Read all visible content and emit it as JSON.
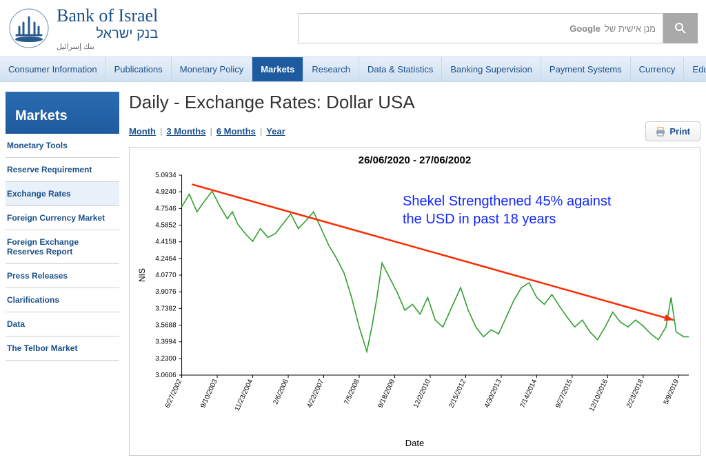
{
  "header": {
    "bank_en": "Bank of Israel",
    "bank_he": "בנק ישראל",
    "bank_ar": "بنك إسرائيل",
    "search_label": "מנן אישית של",
    "search_brand": "Google"
  },
  "nav": {
    "items": [
      "Consumer Information",
      "Publications",
      "Monetary Policy",
      "Markets",
      "Research",
      "Data & Statistics",
      "Banking Supervision",
      "Payment Systems",
      "Currency",
      "Education"
    ],
    "active_index": 3
  },
  "sidebar": {
    "title": "Markets",
    "items": [
      "Monetary Tools",
      "Reserve Requirement",
      "Exchange Rates",
      "Foreign Currency Market",
      "Foreign Exchange Reserves Report",
      "Press Releases",
      "Clarifications",
      "Data",
      "The Telbor Market"
    ],
    "active_index": 2
  },
  "page": {
    "title": "Daily - Exchange Rates: Dollar USA",
    "print_label": "Print"
  },
  "periods": {
    "items": [
      "Month",
      "3 Months",
      "6 Months",
      "Year"
    ]
  },
  "chart": {
    "type": "line",
    "title": "26/06/2020 - 27/06/2002",
    "ylabel": "NIS",
    "xlabel": "Date",
    "ylim": [
      3.0606,
      5.0934
    ],
    "yticks": [
      5.0934,
      4.924,
      4.7546,
      4.5852,
      4.4158,
      4.2464,
      4.077,
      3.9076,
      3.7382,
      3.5688,
      3.3994,
      3.23,
      3.0606
    ],
    "xticks": [
      "6/27/2002",
      "9/10/2003",
      "11/23/2004",
      "2/6/2006",
      "4/22/2007",
      "7/5/2008",
      "9/18/2009",
      "12/2/2010",
      "2/15/2012",
      "4/30/2013",
      "7/14/2014",
      "9/27/2015",
      "12/10/2016",
      "2/23/2018",
      "5/9/2019"
    ],
    "line_color": "#2e9e2e",
    "background_color": "#ffffff",
    "axis_color": "#000000",
    "tick_fontsize": 10,
    "annotation_text_1": "Shekel Strengthened 45% against",
    "annotation_text_2": "the USD in past 18 years",
    "annotation_color": "#1227ff",
    "arrow_color": "#ff2a00",
    "series": [
      [
        0,
        4.77
      ],
      [
        0.015,
        4.9
      ],
      [
        0.03,
        4.72
      ],
      [
        0.045,
        4.83
      ],
      [
        0.06,
        4.93
      ],
      [
        0.075,
        4.78
      ],
      [
        0.09,
        4.65
      ],
      [
        0.1,
        4.72
      ],
      [
        0.11,
        4.6
      ],
      [
        0.125,
        4.5
      ],
      [
        0.14,
        4.42
      ],
      [
        0.155,
        4.55
      ],
      [
        0.17,
        4.46
      ],
      [
        0.185,
        4.5
      ],
      [
        0.2,
        4.6
      ],
      [
        0.215,
        4.7
      ],
      [
        0.23,
        4.55
      ],
      [
        0.245,
        4.63
      ],
      [
        0.26,
        4.72
      ],
      [
        0.275,
        4.55
      ],
      [
        0.29,
        4.38
      ],
      [
        0.305,
        4.25
      ],
      [
        0.32,
        4.1
      ],
      [
        0.335,
        3.85
      ],
      [
        0.35,
        3.55
      ],
      [
        0.365,
        3.3
      ],
      [
        0.375,
        3.55
      ],
      [
        0.385,
        3.85
      ],
      [
        0.395,
        4.2
      ],
      [
        0.41,
        4.05
      ],
      [
        0.425,
        3.9
      ],
      [
        0.44,
        3.72
      ],
      [
        0.455,
        3.78
      ],
      [
        0.47,
        3.68
      ],
      [
        0.485,
        3.85
      ],
      [
        0.5,
        3.62
      ],
      [
        0.515,
        3.55
      ],
      [
        0.535,
        3.78
      ],
      [
        0.55,
        3.95
      ],
      [
        0.565,
        3.72
      ],
      [
        0.58,
        3.55
      ],
      [
        0.595,
        3.45
      ],
      [
        0.61,
        3.52
      ],
      [
        0.625,
        3.48
      ],
      [
        0.64,
        3.65
      ],
      [
        0.655,
        3.82
      ],
      [
        0.67,
        3.95
      ],
      [
        0.685,
        4.0
      ],
      [
        0.7,
        3.85
      ],
      [
        0.715,
        3.78
      ],
      [
        0.73,
        3.88
      ],
      [
        0.745,
        3.76
      ],
      [
        0.76,
        3.65
      ],
      [
        0.775,
        3.55
      ],
      [
        0.79,
        3.62
      ],
      [
        0.805,
        3.5
      ],
      [
        0.82,
        3.42
      ],
      [
        0.835,
        3.55
      ],
      [
        0.85,
        3.7
      ],
      [
        0.865,
        3.6
      ],
      [
        0.88,
        3.55
      ],
      [
        0.895,
        3.62
      ],
      [
        0.91,
        3.56
      ],
      [
        0.925,
        3.48
      ],
      [
        0.94,
        3.42
      ],
      [
        0.955,
        3.55
      ],
      [
        0.965,
        3.85
      ],
      [
        0.975,
        3.5
      ],
      [
        0.99,
        3.45
      ],
      [
        1,
        3.45
      ]
    ]
  }
}
